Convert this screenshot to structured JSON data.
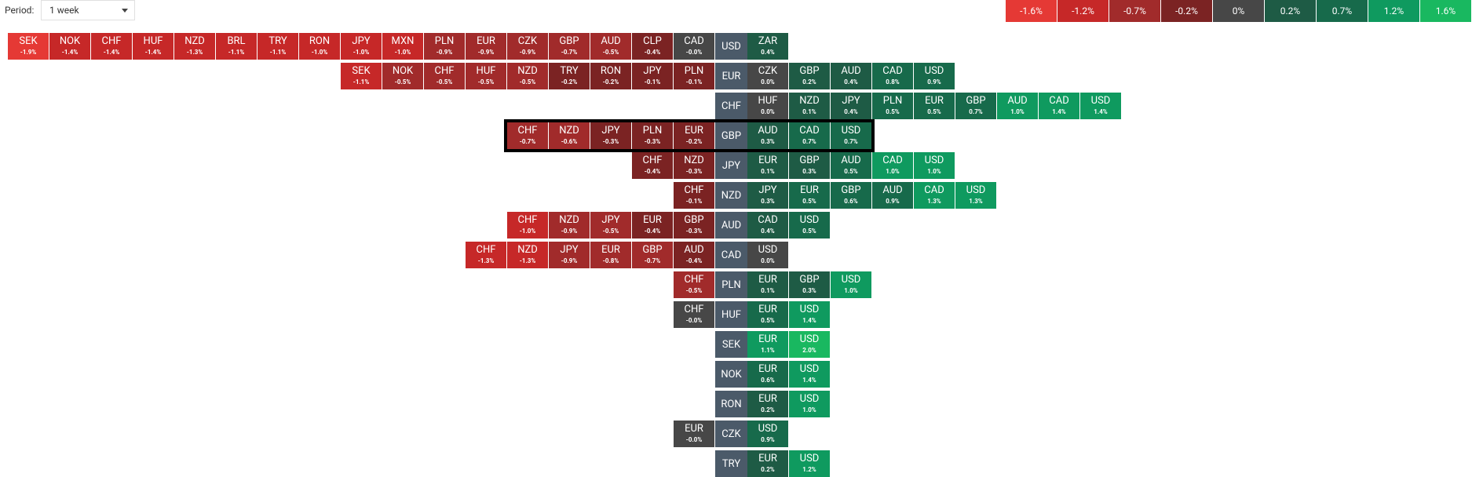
{
  "toolbar": {
    "period_label": "Period:",
    "period_value": "1 week"
  },
  "legend": [
    "-1.6%",
    "-1.2%",
    "-0.7%",
    "-0.2%",
    "0%",
    "0.2%",
    "0.7%",
    "1.2%",
    "1.6%"
  ],
  "rows": [
    {
      "base": "USD",
      "left": [
        [
          "SEK",
          "-1.9%"
        ],
        [
          "NOK",
          "-1.4%"
        ],
        [
          "CHF",
          "-1.4%"
        ],
        [
          "HUF",
          "-1.4%"
        ],
        [
          "NZD",
          "-1.3%"
        ],
        [
          "BRL",
          "-1.1%"
        ],
        [
          "TRY",
          "-1.1%"
        ],
        [
          "RON",
          "-1.0%"
        ],
        [
          "JPY",
          "-1.0%"
        ],
        [
          "MXN",
          "-1.0%"
        ],
        [
          "PLN",
          "-0.9%"
        ],
        [
          "EUR",
          "-0.9%"
        ],
        [
          "CZK",
          "-0.9%"
        ],
        [
          "GBP",
          "-0.7%"
        ],
        [
          "AUD",
          "-0.5%"
        ],
        [
          "CLP",
          "-0.4%"
        ],
        [
          "CAD",
          "-0.0%"
        ]
      ],
      "right": [
        [
          "ZAR",
          "0.4%"
        ]
      ]
    },
    {
      "base": "EUR",
      "left": [
        [
          "SEK",
          "-1.1%"
        ],
        [
          "NOK",
          "-0.5%"
        ],
        [
          "CHF",
          "-0.5%"
        ],
        [
          "HUF",
          "-0.5%"
        ],
        [
          "NZD",
          "-0.5%"
        ],
        [
          "TRY",
          "-0.2%"
        ],
        [
          "RON",
          "-0.2%"
        ],
        [
          "JPY",
          "-0.1%"
        ],
        [
          "PLN",
          "-0.1%"
        ]
      ],
      "right": [
        [
          "CZK",
          "0.0%"
        ],
        [
          "GBP",
          "0.2%"
        ],
        [
          "AUD",
          "0.4%"
        ],
        [
          "CAD",
          "0.8%"
        ],
        [
          "USD",
          "0.9%"
        ]
      ]
    },
    {
      "base": "CHF",
      "left": [],
      "right": [
        [
          "HUF",
          "0.0%"
        ],
        [
          "NZD",
          "0.1%"
        ],
        [
          "JPY",
          "0.4%"
        ],
        [
          "PLN",
          "0.5%"
        ],
        [
          "EUR",
          "0.5%"
        ],
        [
          "GBP",
          "0.7%"
        ],
        [
          "AUD",
          "1.0%"
        ],
        [
          "CAD",
          "1.4%"
        ],
        [
          "USD",
          "1.4%"
        ]
      ]
    },
    {
      "base": "GBP",
      "selected": true,
      "left": [
        [
          "CHF",
          "-0.7%"
        ],
        [
          "NZD",
          "-0.6%"
        ],
        [
          "JPY",
          "-0.3%"
        ],
        [
          "PLN",
          "-0.3%"
        ],
        [
          "EUR",
          "-0.2%"
        ]
      ],
      "right": [
        [
          "AUD",
          "0.3%"
        ],
        [
          "CAD",
          "0.7%"
        ],
        [
          "USD",
          "0.7%"
        ]
      ]
    },
    {
      "base": "JPY",
      "left": [
        [
          "CHF",
          "-0.4%"
        ],
        [
          "NZD",
          "-0.3%"
        ]
      ],
      "right": [
        [
          "EUR",
          "0.1%"
        ],
        [
          "GBP",
          "0.3%"
        ],
        [
          "AUD",
          "0.5%"
        ],
        [
          "CAD",
          "1.0%"
        ],
        [
          "USD",
          "1.0%"
        ]
      ]
    },
    {
      "base": "NZD",
      "left": [
        [
          "CHF",
          "-0.1%"
        ]
      ],
      "right": [
        [
          "JPY",
          "0.3%"
        ],
        [
          "EUR",
          "0.5%"
        ],
        [
          "GBP",
          "0.6%"
        ],
        [
          "AUD",
          "0.9%"
        ],
        [
          "CAD",
          "1.3%"
        ],
        [
          "USD",
          "1.3%"
        ]
      ]
    },
    {
      "base": "AUD",
      "left": [
        [
          "CHF",
          "-1.0%"
        ],
        [
          "NZD",
          "-0.9%"
        ],
        [
          "JPY",
          "-0.5%"
        ],
        [
          "EUR",
          "-0.4%"
        ],
        [
          "GBP",
          "-0.3%"
        ]
      ],
      "right": [
        [
          "CAD",
          "0.4%"
        ],
        [
          "USD",
          "0.5%"
        ]
      ]
    },
    {
      "base": "CAD",
      "left": [
        [
          "CHF",
          "-1.3%"
        ],
        [
          "NZD",
          "-1.3%"
        ],
        [
          "JPY",
          "-0.9%"
        ],
        [
          "EUR",
          "-0.8%"
        ],
        [
          "GBP",
          "-0.7%"
        ],
        [
          "AUD",
          "-0.4%"
        ]
      ],
      "right": [
        [
          "USD",
          "0.0%"
        ]
      ]
    },
    {
      "base": "PLN",
      "left": [
        [
          "CHF",
          "-0.5%"
        ]
      ],
      "right": [
        [
          "EUR",
          "0.1%"
        ],
        [
          "GBP",
          "0.3%"
        ],
        [
          "USD",
          "1.0%"
        ]
      ]
    },
    {
      "base": "HUF",
      "left": [
        [
          "CHF",
          "-0.0%"
        ]
      ],
      "right": [
        [
          "EUR",
          "0.5%"
        ],
        [
          "USD",
          "1.4%"
        ]
      ]
    },
    {
      "base": "SEK",
      "left": [],
      "right": [
        [
          "EUR",
          "1.1%"
        ],
        [
          "USD",
          "2.0%"
        ]
      ]
    },
    {
      "base": "NOK",
      "left": [],
      "right": [
        [
          "EUR",
          "0.6%"
        ],
        [
          "USD",
          "1.4%"
        ]
      ]
    },
    {
      "base": "RON",
      "left": [],
      "right": [
        [
          "EUR",
          "0.2%"
        ],
        [
          "USD",
          "1.0%"
        ]
      ]
    },
    {
      "base": "CZK",
      "left": [
        [
          "EUR",
          "-0.0%"
        ]
      ],
      "right": [
        [
          "USD",
          "0.9%"
        ]
      ]
    },
    {
      "base": "TRY",
      "left": [],
      "right": [
        [
          "EUR",
          "0.2%"
        ],
        [
          "USD",
          "1.2%"
        ]
      ]
    }
  ]
}
